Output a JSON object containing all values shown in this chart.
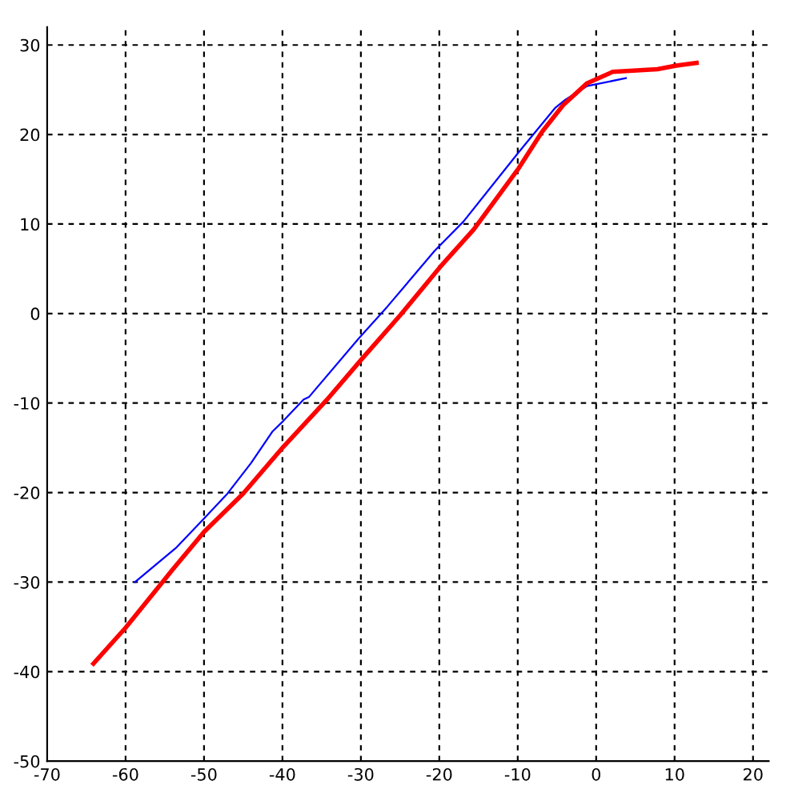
{
  "chart_data": {
    "type": "line",
    "series": [
      {
        "color": "#0000ff",
        "x": [
          -58.8,
          -53.6,
          -50,
          -47.0,
          -44,
          -41.3,
          -39.9,
          -37.3,
          -36.6,
          -30.3,
          -26.6,
          -20.6,
          -16.9,
          -9.9,
          -5.2,
          -3.9,
          -1.2,
          3.8
        ],
        "values": [
          -30.0,
          -26.2,
          -22.9,
          -20.1,
          -16.7,
          -13.2,
          -12.0,
          -9.6,
          -9.3,
          -2.8,
          0.8,
          7.0,
          10.3,
          18.0,
          23.0,
          23.9,
          25.4,
          26.3
        ]
      },
      {
        "color": "#ff0000",
        "x": [
          -64.1,
          -60,
          -54,
          -50,
          -45,
          -39.9,
          -34.3,
          -29.9,
          -24.9,
          -19.9,
          -15.6,
          -9.9,
          -6.9,
          -4.2,
          -1.2,
          2.1,
          7.8,
          10.2,
          12.8
        ],
        "values": [
          -39.1,
          -35.1,
          -28.6,
          -24.4,
          -20.1,
          -14.9,
          -9.6,
          -5.1,
          -0.1,
          5.2,
          9.4,
          16.2,
          20.3,
          23.3,
          25.7,
          27.0,
          27.3,
          27.7,
          28.0
        ]
      }
    ],
    "xlim": [
      -70,
      22
    ],
    "ylim": [
      -50,
      32
    ],
    "xticks": [
      -70,
      -60,
      -50,
      -40,
      -30,
      -20,
      -10,
      0,
      10,
      20
    ],
    "yticks": [
      -50,
      -40,
      -30,
      -20,
      -10,
      0,
      10,
      20,
      30
    ],
    "grid": true,
    "line_style": "solid",
    "marker": "none"
  }
}
